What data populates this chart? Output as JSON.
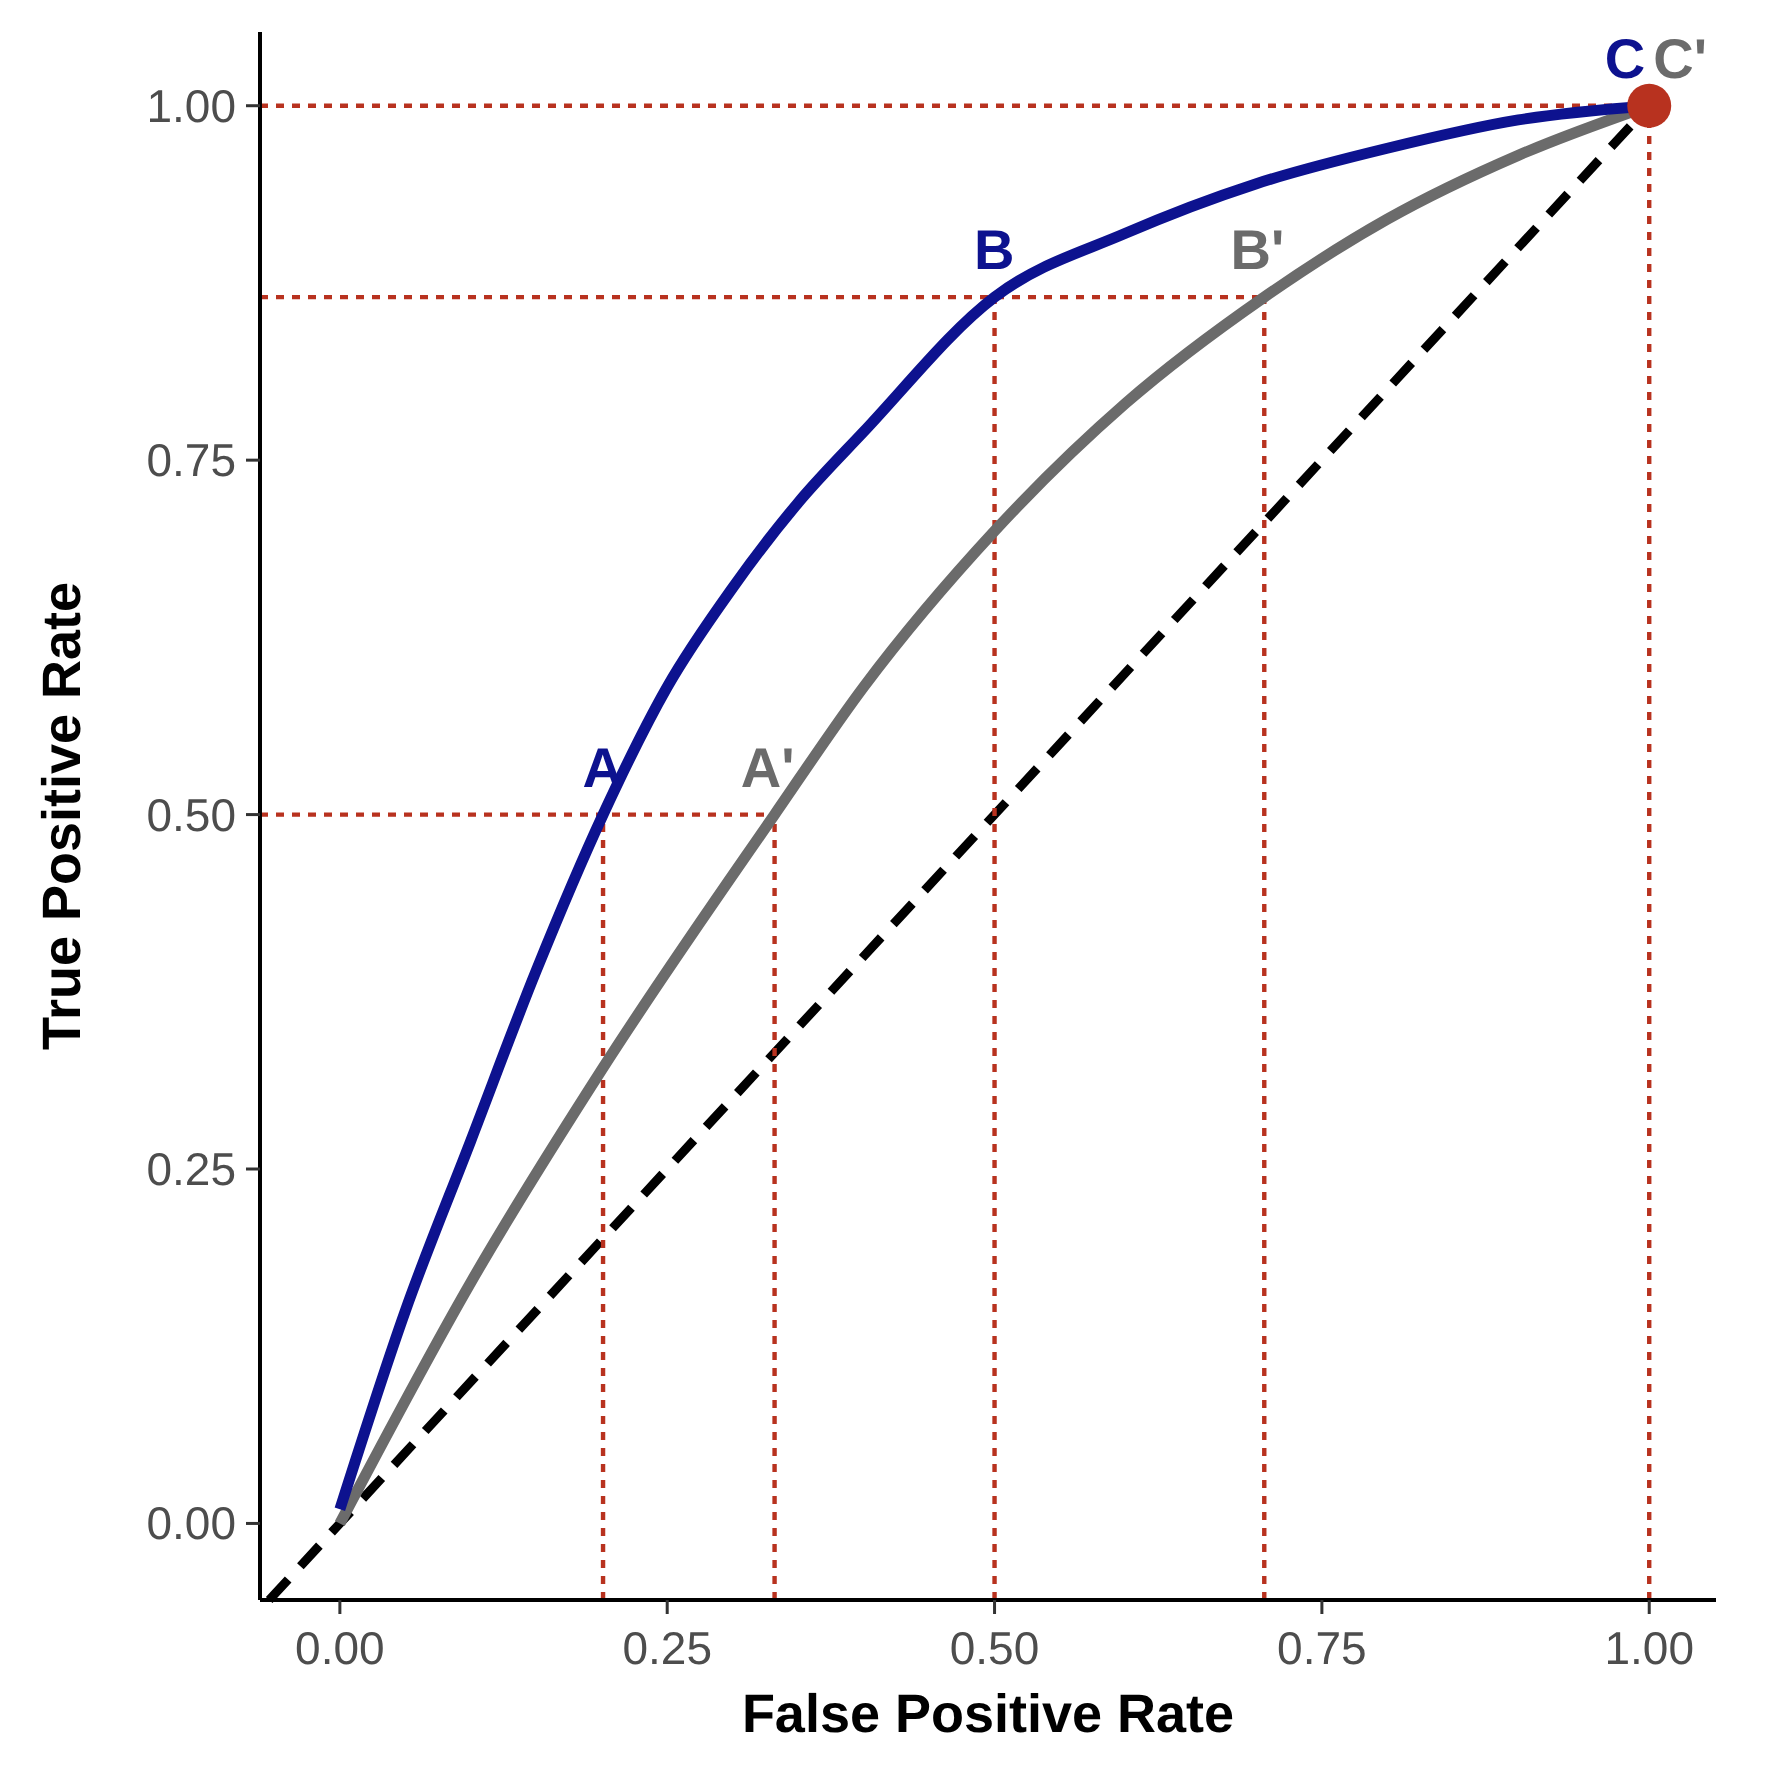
{
  "chart_data": {
    "type": "line",
    "xlabel": "False Positive Rate",
    "ylabel": "True Positive Rate",
    "xlim": [
      -0.061,
      1.051
    ],
    "ylim": [
      -0.054,
      1.052
    ],
    "xticks": [
      {
        "value": 0,
        "label": "0.00"
      },
      {
        "value": 0.25,
        "label": "0.25"
      },
      {
        "value": 0.5,
        "label": "0.50"
      },
      {
        "value": 0.75,
        "label": "0.75"
      },
      {
        "value": 1,
        "label": "1.00"
      }
    ],
    "yticks": [
      {
        "value": 0,
        "label": "0.00"
      },
      {
        "value": 0.25,
        "label": "0.25"
      },
      {
        "value": 0.5,
        "label": "0.50"
      },
      {
        "value": 0.75,
        "label": "0.75"
      },
      {
        "value": 1,
        "label": "1.00"
      }
    ],
    "grid": false,
    "series": [
      {
        "type": "line",
        "color": "#000000",
        "line_style": "dashed",
        "marker": "none",
        "x": [
          -0.054,
          1
        ],
        "values": [
          -0.054,
          1
        ]
      },
      {
        "type": "line",
        "color": "#b8321f",
        "line_style": "dotted",
        "marker": "none",
        "x": [
          -0.061,
          0.332
        ],
        "values": [
          0.5,
          0.5
        ]
      },
      {
        "type": "line",
        "color": "#b8321f",
        "line_style": "dotted",
        "marker": "none",
        "x": [
          -0.061,
          0.706
        ],
        "values": [
          0.865,
          0.865
        ]
      },
      {
        "type": "line",
        "color": "#b8321f",
        "line_style": "dotted",
        "marker": "none",
        "x": [
          -0.061,
          1
        ],
        "values": [
          1,
          1
        ]
      },
      {
        "type": "line",
        "color": "#b8321f",
        "line_style": "dotted",
        "marker": "none",
        "x": [
          0.201,
          0.201
        ],
        "values": [
          -0.054,
          0.5
        ]
      },
      {
        "type": "line",
        "color": "#b8321f",
        "line_style": "dotted",
        "marker": "none",
        "x": [
          0.332,
          0.332
        ],
        "values": [
          -0.054,
          0.5
        ]
      },
      {
        "type": "line",
        "color": "#b8321f",
        "line_style": "dotted",
        "marker": "none",
        "x": [
          0.5,
          0.5
        ],
        "values": [
          -0.054,
          0.865
        ]
      },
      {
        "type": "line",
        "color": "#b8321f",
        "line_style": "dotted",
        "marker": "none",
        "x": [
          0.706,
          0.706
        ],
        "values": [
          -0.054,
          0.865
        ]
      },
      {
        "type": "line",
        "color": "#b8321f",
        "line_style": "dotted",
        "marker": "none",
        "x": [
          1,
          1
        ],
        "values": [
          -0.054,
          1
        ]
      },
      {
        "color": "#6b6b6b",
        "line_style": "solid",
        "marker": "none",
        "x": [
          0,
          0.1,
          0.2,
          0.332,
          0.4,
          0.5,
          0.6,
          0.706,
          0.8,
          0.9,
          1
        ],
        "values": [
          0,
          0.17,
          0.32,
          0.5,
          0.59,
          0.7,
          0.79,
          0.865,
          0.92,
          0.965,
          1
        ],
        "value_labels": [
          null,
          null,
          null,
          "A'",
          null,
          null,
          null,
          "B'",
          null,
          null,
          "C'"
        ]
      },
      {
        "color": "#0d128f",
        "line_style": "solid",
        "marker": "none",
        "x": [
          0,
          0.05,
          0.1,
          0.15,
          0.201,
          0.25,
          0.3,
          0.35,
          0.4,
          0.5,
          0.6,
          0.7,
          0.8,
          0.9,
          1
        ],
        "values": [
          0.01,
          0.15,
          0.27,
          0.39,
          0.5,
          0.59,
          0.66,
          0.72,
          0.77,
          0.865,
          0.91,
          0.945,
          0.97,
          0.99,
          1
        ],
        "value_labels": [
          null,
          null,
          null,
          null,
          "A",
          null,
          null,
          null,
          null,
          "B",
          null,
          null,
          null,
          null,
          "C"
        ]
      },
      {
        "type": "scatter",
        "color": "#b8321f",
        "marker": "circle",
        "x": [
          1
        ],
        "values": [
          1
        ]
      }
    ]
  }
}
